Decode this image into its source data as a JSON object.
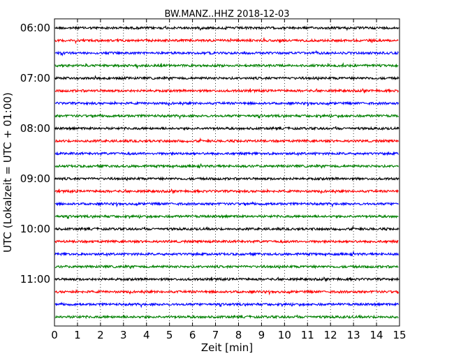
{
  "chart_data": {
    "type": "line",
    "title": "BW.MANZ..HHZ 2018-12-03",
    "xlabel": "Zeit  [min]",
    "ylabel": "UTC (Lokalzeit = UTC + 01:00)",
    "xlim": [
      0,
      15
    ],
    "x_ticks": [
      "0",
      "1",
      "2",
      "3",
      "4",
      "5",
      "6",
      "7",
      "8",
      "9",
      "10",
      "11",
      "12",
      "13",
      "14",
      "15"
    ],
    "y_ticks": [
      "06:00",
      "07:00",
      "08:00",
      "09:00",
      "10:00",
      "11:00"
    ],
    "grid": "vertical dotted lines at each minute",
    "trace_colors": [
      "#000000",
      "#ff0000",
      "#0000ff",
      "#008000"
    ],
    "trace_start_times": [
      "06:00",
      "06:15",
      "06:30",
      "06:45",
      "07:00",
      "07:15",
      "07:30",
      "07:45",
      "08:00",
      "08:15",
      "08:30",
      "08:45",
      "09:00",
      "09:15",
      "09:30",
      "09:45",
      "10:00",
      "10:15",
      "10:30",
      "10:45",
      "11:00",
      "11:15",
      "11:30",
      "11:45"
    ]
  }
}
